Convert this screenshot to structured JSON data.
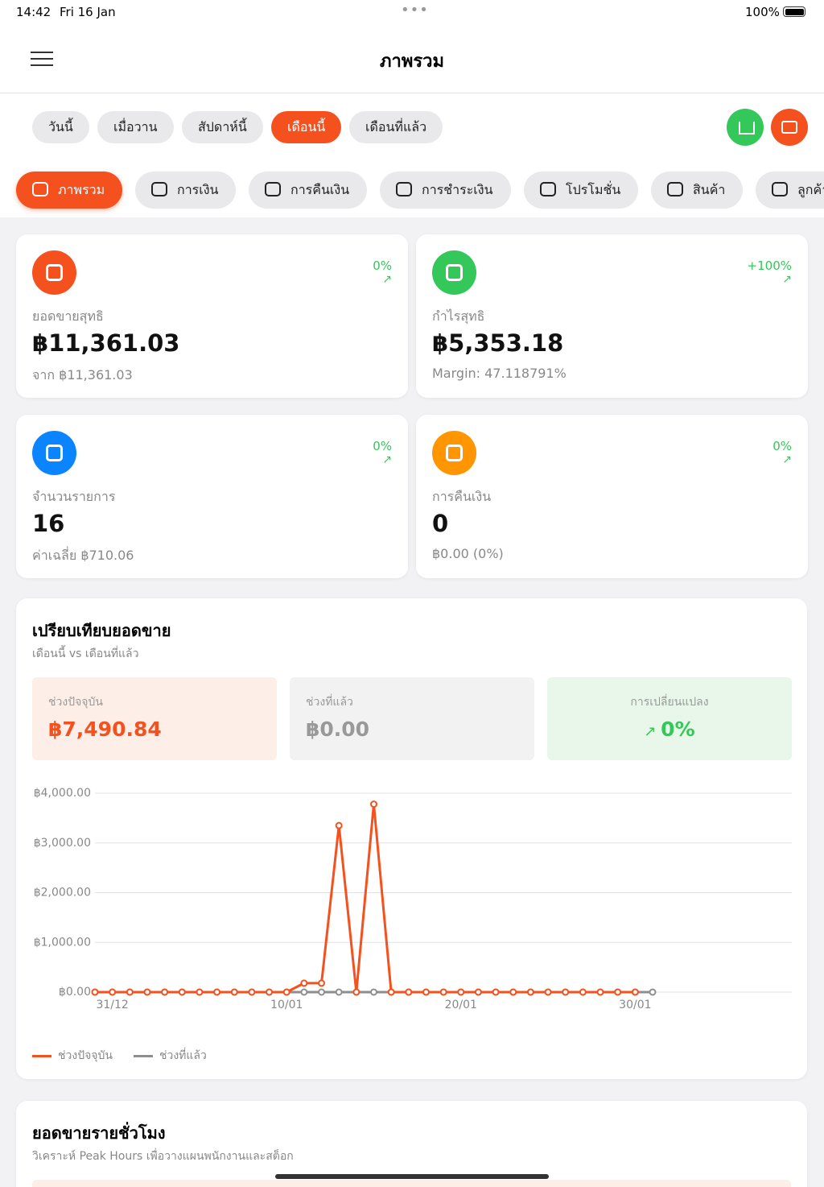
{
  "status_bar": {
    "time": "14:42",
    "date": "Fri 16 Jan",
    "battery": "100%"
  },
  "header": {
    "title": "ภาพรวม"
  },
  "period_tabs": {
    "items": [
      "วันนี้",
      "เมื่อวาน",
      "สัปดาห์นี้",
      "เดือนนี้",
      "เดือนที่แล้ว"
    ],
    "active": 3
  },
  "category_tabs": {
    "items": [
      "ภาพรวม",
      "การเงิน",
      "การคืนเงิน",
      "การชำระเงิน",
      "โปรโมชั่น",
      "สินค้า",
      "ลูกค้า"
    ],
    "active": 0
  },
  "stat_cards": [
    {
      "label": "ยอดขายสุทธิ",
      "value": "฿11,361.03",
      "sub": "จาก ฿11,361.03",
      "change": "0%",
      "color": "#f4511e"
    },
    {
      "label": "กำไรสุทธิ",
      "value": "฿5,353.18",
      "sub": "Margin: 47.118791%",
      "change": "+100%",
      "color": "#34c759"
    },
    {
      "label": "จำนวนรายการ",
      "value": "16",
      "sub": "ค่าเฉลี่ย ฿710.06",
      "change": "0%",
      "color": "#0a84ff"
    },
    {
      "label": "การคืนเงิน",
      "value": "0",
      "sub": "฿0.00 (0%)",
      "change": "0%",
      "color": "#ff9500"
    }
  ],
  "comparison": {
    "title": "เปรียบเทียบยอดขาย",
    "subtitle": "เดือนนี้ vs เดือนที่แล้ว",
    "boxes": [
      {
        "label": "ช่วงปัจจุบัน",
        "value": "฿7,490.84"
      },
      {
        "label": "ช่วงที่แล้ว",
        "value": "฿0.00"
      },
      {
        "label": "การเปลี่ยนแปลง",
        "value": "0%"
      }
    ]
  },
  "chart_data": {
    "type": "line",
    "ylim": [
      0,
      4000
    ],
    "yticks": [
      {
        "value": 0,
        "label": "฿0.00"
      },
      {
        "value": 1000,
        "label": "฿1,000.00"
      },
      {
        "value": 2000,
        "label": "฿2,000.00"
      },
      {
        "value": 3000,
        "label": "฿3,000.00"
      },
      {
        "value": 4000,
        "label": "฿4,000.00"
      }
    ],
    "grid": true,
    "categories": [
      null,
      "31/12",
      null,
      null,
      null,
      null,
      null,
      null,
      null,
      null,
      null,
      "10/01",
      null,
      null,
      null,
      null,
      null,
      null,
      null,
      null,
      null,
      "20/01",
      null,
      null,
      null,
      null,
      null,
      null,
      null,
      null,
      null,
      "30/01",
      null
    ],
    "series": [
      {
        "name": "ช่วงปัจจุบัน",
        "color": "#f4511e",
        "values": [
          0,
          0,
          0,
          0,
          0,
          0,
          0,
          0,
          0,
          0,
          0,
          0,
          180,
          180,
          3350,
          0,
          3780,
          0,
          0,
          0,
          0,
          0,
          0,
          0,
          0,
          0,
          0,
          0,
          0,
          0,
          0,
          0,
          null
        ]
      },
      {
        "name": "ช่วงที่แล้ว",
        "color": "#8e8e8e",
        "values": [
          0,
          0,
          0,
          0,
          0,
          0,
          0,
          0,
          0,
          0,
          0,
          0,
          0,
          0,
          0,
          0,
          0,
          0,
          0,
          0,
          0,
          0,
          0,
          0,
          0,
          0,
          0,
          0,
          0,
          0,
          0,
          0,
          0
        ]
      }
    ]
  },
  "hourly": {
    "title": "ยอดขายรายชั่วโมง",
    "subtitle": "วิเคราะห์ Peak Hours เพื่อวางแผนพนักงานและสต็อก"
  }
}
